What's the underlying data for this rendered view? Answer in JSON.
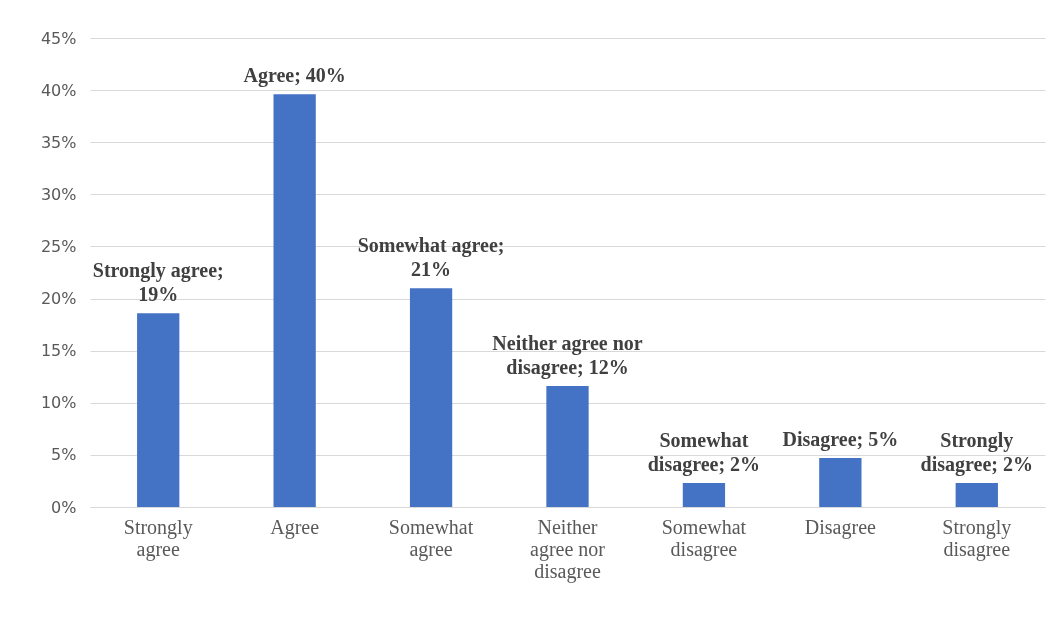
{
  "chart_data": {
    "type": "bar",
    "categories": [
      "Strongly agree",
      "Agree",
      "Somewhat agree",
      "Neither agree nor disagree",
      "Somewhat disagree",
      "Disagree",
      "Strongly disagree"
    ],
    "values": [
      18.6,
      39.6,
      21,
      11.6,
      2.3,
      4.7,
      2.3
    ],
    "value_labels": [
      "Strongly agree; 19%",
      "Agree; 40%",
      "Somewhat agree; 21%",
      "Neither agree nor disagree; 12%",
      "Somewhat disagree; 2%",
      "Disagree; 5%",
      "Strongly disagree; 2%"
    ],
    "color": "#4472c4",
    "ylim": [
      0,
      45
    ],
    "yticks": [
      {
        "value": 0,
        "label": "0%"
      },
      {
        "value": 5,
        "label": "5%"
      },
      {
        "value": 10,
        "label": "10%"
      },
      {
        "value": 15,
        "label": "15%"
      },
      {
        "value": 20,
        "label": "20%"
      },
      {
        "value": 25,
        "label": "25%"
      },
      {
        "value": 30,
        "label": "30%"
      },
      {
        "value": 35,
        "label": "35%"
      },
      {
        "value": 40,
        "label": "40%"
      },
      {
        "value": 45,
        "label": "45%"
      }
    ],
    "grid": "y"
  }
}
